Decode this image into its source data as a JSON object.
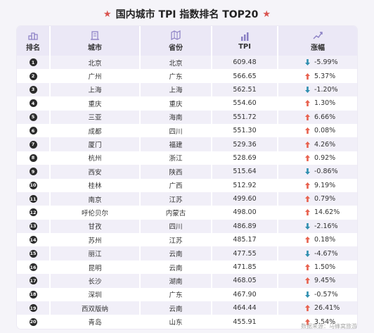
{
  "title": "国内城市 TPI 指数排名 TOP20",
  "colors": {
    "up": "#e8614e",
    "down": "#2f8fb0",
    "header_bg": "#ebe8f6",
    "stripe": "#f1eff8",
    "icon": "#8a7fc4"
  },
  "headers": {
    "rank": "排名",
    "city": "城市",
    "province": "省份",
    "tpi": "TPI",
    "change": "涨幅"
  },
  "rows": [
    {
      "rank": "1",
      "city": "北京",
      "province": "北京",
      "tpi": "609.48",
      "change": "-5.99%",
      "dir": "down"
    },
    {
      "rank": "2",
      "city": "广州",
      "province": "广东",
      "tpi": "566.65",
      "change": "5.37%",
      "dir": "up"
    },
    {
      "rank": "3",
      "city": "上海",
      "province": "上海",
      "tpi": "562.51",
      "change": "-1.20%",
      "dir": "down"
    },
    {
      "rank": "4",
      "city": "重庆",
      "province": "重庆",
      "tpi": "554.60",
      "change": "1.30%",
      "dir": "up"
    },
    {
      "rank": "5",
      "city": "三亚",
      "province": "海南",
      "tpi": "551.72",
      "change": "6.66%",
      "dir": "up"
    },
    {
      "rank": "6",
      "city": "成都",
      "province": "四川",
      "tpi": "551.30",
      "change": "0.08%",
      "dir": "up"
    },
    {
      "rank": "7",
      "city": "厦门",
      "province": "福建",
      "tpi": "529.36",
      "change": "4.26%",
      "dir": "up"
    },
    {
      "rank": "8",
      "city": "杭州",
      "province": "浙江",
      "tpi": "528.69",
      "change": "0.92%",
      "dir": "up"
    },
    {
      "rank": "9",
      "city": "西安",
      "province": "陕西",
      "tpi": "515.64",
      "change": "-0.86%",
      "dir": "down"
    },
    {
      "rank": "10",
      "city": "桂林",
      "province": "广西",
      "tpi": "512.92",
      "change": "9.19%",
      "dir": "up"
    },
    {
      "rank": "11",
      "city": "南京",
      "province": "江苏",
      "tpi": "499.60",
      "change": "0.79%",
      "dir": "up"
    },
    {
      "rank": "12",
      "city": "呼伦贝尔",
      "province": "内蒙古",
      "tpi": "498.00",
      "change": "14.62%",
      "dir": "up"
    },
    {
      "rank": "13",
      "city": "甘孜",
      "province": "四川",
      "tpi": "486.89",
      "change": "-2.16%",
      "dir": "down"
    },
    {
      "rank": "14",
      "city": "苏州",
      "province": "江苏",
      "tpi": "485.17",
      "change": "0.18%",
      "dir": "up"
    },
    {
      "rank": "15",
      "city": "丽江",
      "province": "云南",
      "tpi": "477.55",
      "change": "-4.67%",
      "dir": "down"
    },
    {
      "rank": "16",
      "city": "昆明",
      "province": "云南",
      "tpi": "471.85",
      "change": "1.50%",
      "dir": "up"
    },
    {
      "rank": "17",
      "city": "长沙",
      "province": "湖南",
      "tpi": "468.05",
      "change": "9.45%",
      "dir": "up"
    },
    {
      "rank": "18",
      "city": "深圳",
      "province": "广东",
      "tpi": "467.90",
      "change": "-0.57%",
      "dir": "down"
    },
    {
      "rank": "19",
      "city": "西双版纳",
      "province": "云南",
      "tpi": "464.44",
      "change": "26.41%",
      "dir": "up"
    },
    {
      "rank": "20",
      "city": "青岛",
      "province": "山东",
      "tpi": "455.91",
      "change": "3.54%",
      "dir": "up"
    }
  ],
  "footer": "数据来源：马蜂窝旅游"
}
